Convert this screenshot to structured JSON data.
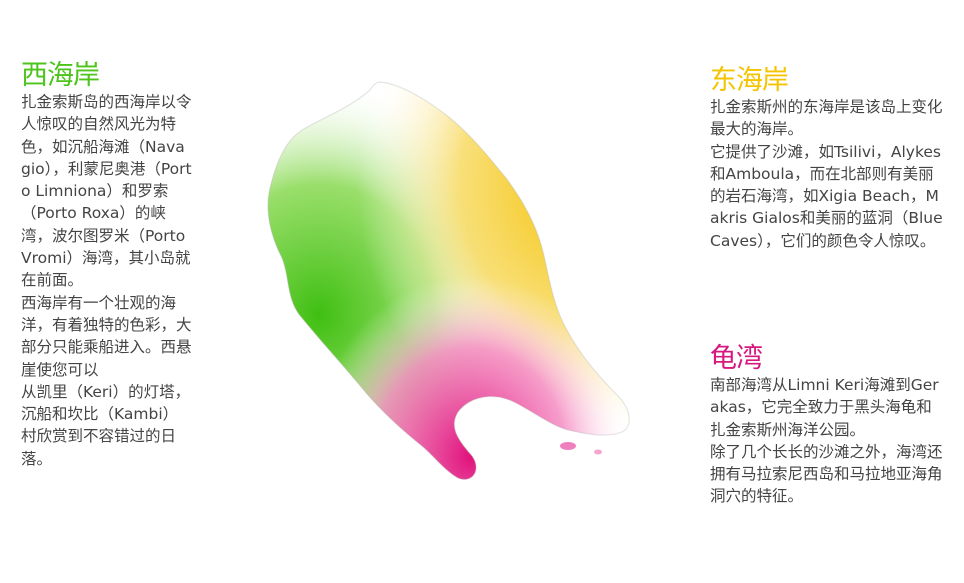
{
  "colors": {
    "west": "#4cc41c",
    "east": "#f5c400",
    "turtle": "#d6197f",
    "text": "#444444"
  },
  "west": {
    "title": "西海岸",
    "body": "扎金索斯岛的西海岸以令人惊叹的自然风光为特色，如沉船海滩（Navagio），利蒙尼奥港（Porto Limniona）和罗索（Porto Roxa）的峡湾，波尔图罗米（Porto Vromi）海湾，其小岛就在前面。\n西海岸有一个壮观的海洋，有着独特的色彩，大部分只能乘船进入。西悬崖使您可以\n从凯里（Keri）的灯塔，沉船和坎比（Kambi）村欣赏到不容错过的日落。"
  },
  "east": {
    "title": "东海岸",
    "body": "扎金索斯州的东海岸是该岛上变化最大的海岸。\n它提供了沙滩，如Tsilivi，Alykes和Amboula，而在北部则有美丽的岩石海湾，如Xigia Beach，Makris Gialos和美丽的蓝洞（Blue Caves），它们的颜色令人惊叹。"
  },
  "turtle": {
    "title": "龟湾",
    "body": "南部海湾从Limni Keri海滩到Gerakas，它完全致力于黑头海龟和扎金索斯州海洋公园。\n除了几个长长的沙滩之外，海湾还拥有马拉索尼西岛和马拉地亚海角洞穴的特征。"
  }
}
